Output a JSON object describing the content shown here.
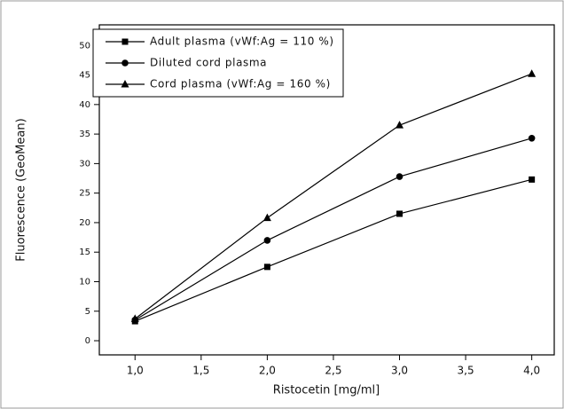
{
  "chart_data": {
    "type": "line",
    "x_label": "Ristocetin [mg/ml]",
    "y_label": "Fluorescence (GeoMean)",
    "x": [
      1.0,
      2.0,
      3.0,
      4.0
    ],
    "series": [
      {
        "name": "Adult plasma (vWf:Ag = 110 %)",
        "color": "#000000",
        "marker": "square",
        "values": [
          3.3,
          12.5,
          21.5,
          27.3
        ]
      },
      {
        "name": "Diluted cord plasma",
        "color": "#000000",
        "marker": "circle",
        "values": [
          3.5,
          17.0,
          27.8,
          34.3
        ]
      },
      {
        "name": "Cord plasma (vWf:Ag = 160 %)",
        "color": "#000000",
        "marker": "triangle",
        "values": [
          3.7,
          20.8,
          36.5,
          45.2
        ]
      }
    ],
    "xlim": [
      0.73,
      4.17
    ],
    "xticks": [
      {
        "value": 1.0,
        "label": "1,0"
      },
      {
        "value": 1.5,
        "label": "1,5"
      },
      {
        "value": 2.0,
        "label": "2,0"
      },
      {
        "value": 2.5,
        "label": "2,5"
      },
      {
        "value": 3.0,
        "label": "3,0"
      },
      {
        "value": 3.5,
        "label": "3,5"
      },
      {
        "value": 4.0,
        "label": "4,0"
      }
    ],
    "ylim": [
      -2.4,
      53.5
    ],
    "yticks": [
      0,
      5,
      10,
      15,
      20,
      25,
      30,
      35,
      40,
      45,
      50
    ],
    "legend": "top-left",
    "grid": false
  }
}
